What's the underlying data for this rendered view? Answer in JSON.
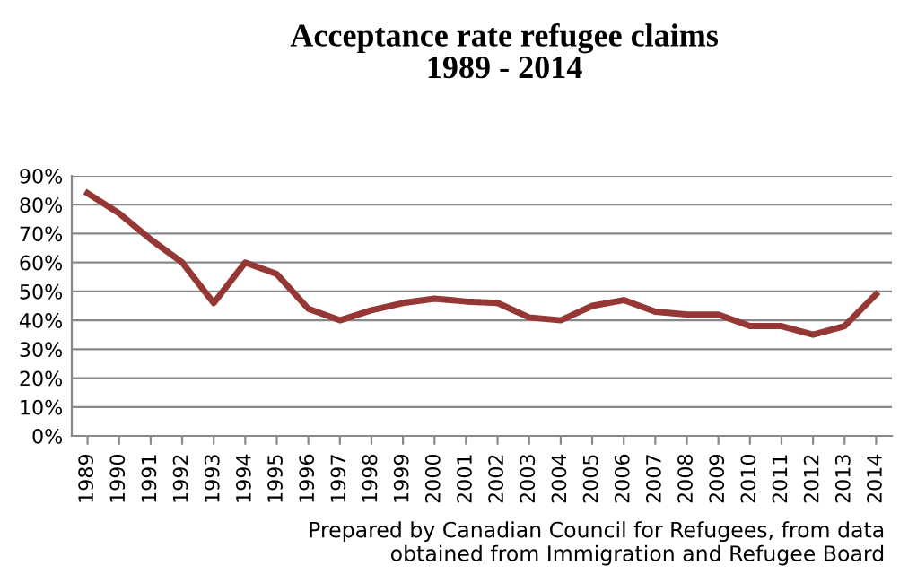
{
  "chart_data": {
    "type": "line",
    "title": "Acceptance rate refugee claims\n1989 - 2014",
    "categories": [
      "1989",
      "1990",
      "1991",
      "1992",
      "1993",
      "1994",
      "1995",
      "1996",
      "1997",
      "1998",
      "1999",
      "2000",
      "2001",
      "2002",
      "2003",
      "2004",
      "2005",
      "2006",
      "2007",
      "2008",
      "2009",
      "2010",
      "2011",
      "2012",
      "2013",
      "2014"
    ],
    "series": [
      {
        "color": "#953735",
        "values": [
          84,
          77,
          68,
          60,
          46,
          60,
          56,
          44,
          40,
          43.5,
          46,
          47.5,
          46.5,
          46,
          41,
          40,
          45,
          47,
          43,
          42,
          42,
          38,
          38,
          35,
          38,
          49
        ]
      }
    ],
    "ylim": [
      0,
      90
    ],
    "yticks": [
      {
        "value": 0,
        "label": "0%"
      },
      {
        "value": 10,
        "label": "10%"
      },
      {
        "value": 20,
        "label": "20%"
      },
      {
        "value": 30,
        "label": "30%"
      },
      {
        "value": 40,
        "label": "40%"
      },
      {
        "value": 50,
        "label": "50%"
      },
      {
        "value": 60,
        "label": "60%"
      },
      {
        "value": 70,
        "label": "70%"
      },
      {
        "value": 80,
        "label": "80%"
      },
      {
        "value": 90,
        "label": "90%"
      }
    ],
    "grid": "y",
    "marker": "none",
    "line_style": "solid",
    "annotations": [
      "Prepared by Canadian Council for Refugees, from data\nobtained from Immigration and Refugee Board"
    ]
  }
}
